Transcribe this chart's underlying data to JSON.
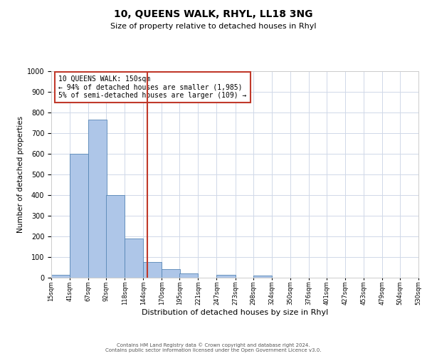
{
  "title": "10, QUEENS WALK, RHYL, LL18 3NG",
  "subtitle": "Size of property relative to detached houses in Rhyl",
  "xlabel": "Distribution of detached houses by size in Rhyl",
  "ylabel": "Number of detached properties",
  "bin_labels": [
    "15sqm",
    "41sqm",
    "67sqm",
    "92sqm",
    "118sqm",
    "144sqm",
    "170sqm",
    "195sqm",
    "221sqm",
    "247sqm",
    "273sqm",
    "298sqm",
    "324sqm",
    "350sqm",
    "376sqm",
    "401sqm",
    "427sqm",
    "453sqm",
    "479sqm",
    "504sqm",
    "530sqm"
  ],
  "bin_edges": [
    15,
    41,
    67,
    92,
    118,
    144,
    170,
    195,
    221,
    247,
    273,
    298,
    324,
    350,
    376,
    401,
    427,
    453,
    479,
    504,
    530
  ],
  "bar_heights": [
    15,
    600,
    765,
    400,
    190,
    75,
    40,
    20,
    0,
    15,
    0,
    10,
    0,
    0,
    0,
    0,
    0,
    0,
    0,
    0
  ],
  "bar_color": "#aec6e8",
  "bar_edge_color": "#5585b5",
  "property_line_x": 150,
  "property_line_color": "#c0392b",
  "annotation_text_line1": "10 QUEENS WALK: 150sqm",
  "annotation_text_line2": "← 94% of detached houses are smaller (1,985)",
  "annotation_text_line3": "5% of semi-detached houses are larger (109) →",
  "annotation_box_color": "#c0392b",
  "ylim": [
    0,
    1000
  ],
  "yticks": [
    0,
    100,
    200,
    300,
    400,
    500,
    600,
    700,
    800,
    900,
    1000
  ],
  "footer_line1": "Contains HM Land Registry data © Crown copyright and database right 2024.",
  "footer_line2": "Contains public sector information licensed under the Open Government Licence v3.0.",
  "background_color": "#ffffff",
  "grid_color": "#d0d8e8",
  "title_fontsize": 10,
  "subtitle_fontsize": 8,
  "xlabel_fontsize": 8,
  "ylabel_fontsize": 7.5,
  "xtick_fontsize": 6,
  "ytick_fontsize": 7,
  "annot_fontsize": 7,
  "footer_fontsize": 5
}
